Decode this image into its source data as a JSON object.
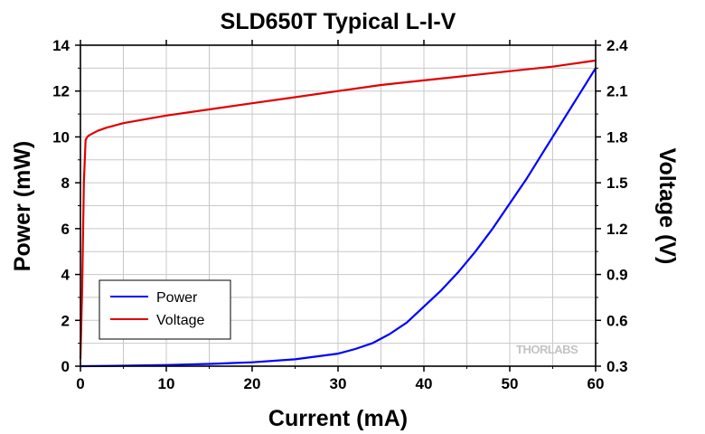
{
  "chart_data": {
    "type": "line",
    "title": "SLD650T Typical L-I-V",
    "xlabel": "Current (mA)",
    "ylabel_left": "Power (mW)",
    "ylabel_right": "Voltage (V)",
    "xlim": [
      0,
      60
    ],
    "ylim_left": [
      0,
      14
    ],
    "ylim_right": [
      0.3,
      2.4
    ],
    "xticks": [
      0,
      10,
      20,
      30,
      40,
      50,
      60
    ],
    "yticks_left": [
      0,
      2,
      4,
      6,
      8,
      10,
      12,
      14
    ],
    "yticks_right": [
      0.3,
      0.6,
      0.9,
      1.2,
      1.5,
      1.8,
      2.1,
      2.4
    ],
    "grid": true,
    "legend_position": "bottom-left",
    "watermark": "THORLABS",
    "series": [
      {
        "name": "Power",
        "axis": "left",
        "color": "#0000ff",
        "x": [
          0,
          5,
          10,
          15,
          20,
          25,
          30,
          32,
          34,
          36,
          38,
          40,
          42,
          44,
          46,
          48,
          50,
          52,
          54,
          56,
          58,
          60
        ],
        "y": [
          0,
          0.02,
          0.05,
          0.1,
          0.17,
          0.3,
          0.55,
          0.75,
          1.0,
          1.4,
          1.9,
          2.6,
          3.3,
          4.1,
          5.0,
          6.0,
          7.1,
          8.2,
          9.4,
          10.6,
          11.8,
          13.0
        ]
      },
      {
        "name": "Voltage",
        "axis": "right",
        "color": "#e00000",
        "x": [
          0,
          0.2,
          0.4,
          0.6,
          0.8,
          1,
          2,
          3,
          5,
          10,
          15,
          20,
          25,
          30,
          35,
          40,
          45,
          50,
          55,
          60
        ],
        "y": [
          0.35,
          0.8,
          1.5,
          1.78,
          1.8,
          1.81,
          1.84,
          1.86,
          1.89,
          1.94,
          1.98,
          2.02,
          2.06,
          2.1,
          2.14,
          2.17,
          2.2,
          2.23,
          2.26,
          2.3
        ]
      }
    ]
  }
}
